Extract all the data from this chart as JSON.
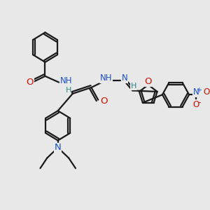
{
  "bg_color": "#e8e8e8",
  "bond_color": "#1a1a1a",
  "bond_width": 1.6,
  "atom_colors": {
    "C": "#1a1a1a",
    "H": "#2a8a8a",
    "N": "#1a4fcc",
    "O": "#cc1100",
    "plus": "#1a4fcc"
  },
  "xlim": [
    0,
    10
  ],
  "ylim": [
    0,
    10
  ]
}
